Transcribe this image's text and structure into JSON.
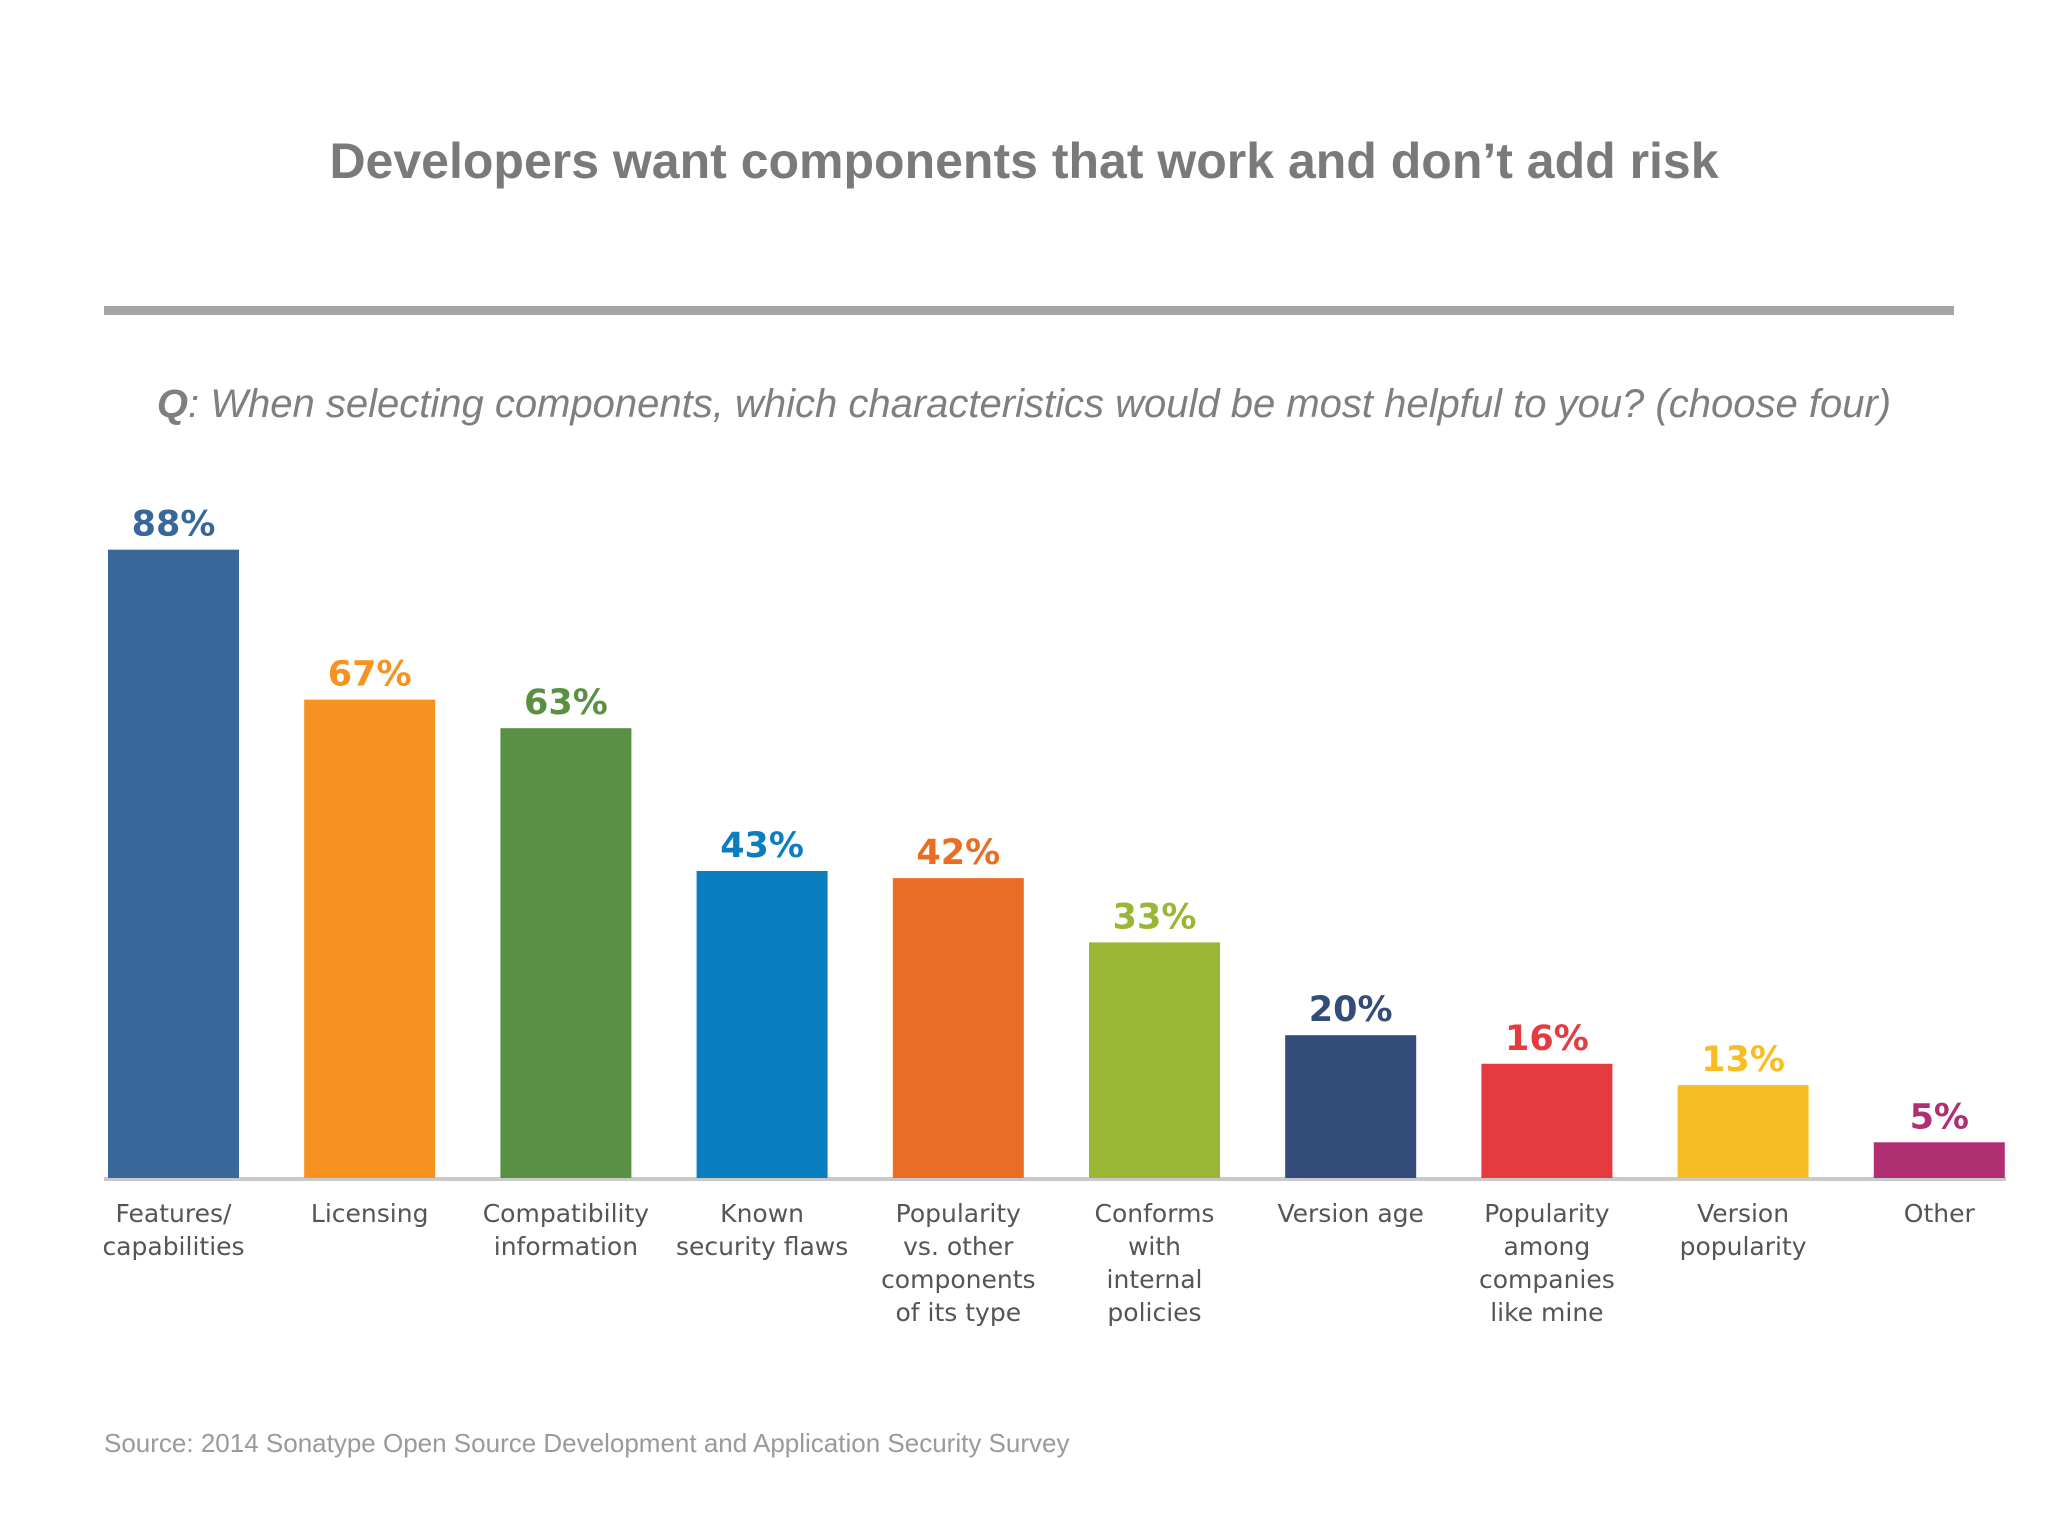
{
  "slide": {
    "title": "Developers want components that work and don’t add risk",
    "question_prefix": "Q",
    "question_text": ": When selecting components, which characteristics would be most helpful to you? (choose four)",
    "source": "Source: 2014 Sonatype Open Source Development and Application Security Survey"
  },
  "chart_data": {
    "type": "bar",
    "title": "",
    "xlabel": "",
    "ylabel": "",
    "ylim": [
      0,
      100
    ],
    "grid": false,
    "legend": "none",
    "categories": [
      [
        "Features/",
        "capabilities"
      ],
      [
        "Licensing"
      ],
      [
        "Compatibility",
        "information"
      ],
      [
        "Known",
        "security flaws"
      ],
      [
        "Popularity",
        "vs. other",
        "components",
        "of its type"
      ],
      [
        "Conforms",
        "with",
        "internal",
        "policies"
      ],
      [
        "Version age"
      ],
      [
        "Popularity",
        "among",
        "companies",
        "like mine"
      ],
      [
        "Version",
        "popularity"
      ],
      [
        "Other"
      ]
    ],
    "values": [
      88,
      67,
      63,
      43,
      42,
      33,
      20,
      16,
      13,
      5
    ],
    "value_labels": [
      "88%",
      "67%",
      "63%",
      "43%",
      "42%",
      "33%",
      "20%",
      "16%",
      "13%",
      "5%"
    ],
    "colors": [
      "#386799",
      "#f79120",
      "#5a9044",
      "#0b7ec0",
      "#e96d24",
      "#99b634",
      "#344c7a",
      "#e43a40",
      "#f7bd22",
      "#b02e72"
    ]
  }
}
